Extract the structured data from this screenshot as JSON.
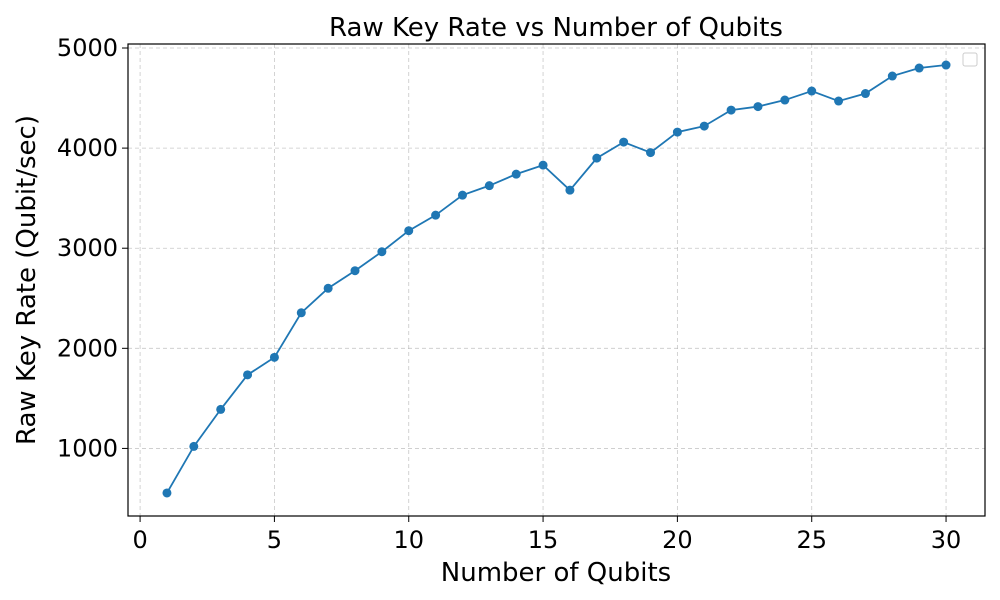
{
  "chart_data": {
    "type": "line",
    "title": "Raw Key Rate vs Number of Qubits",
    "xlabel": "Number of Qubits",
    "ylabel": "Raw Key Rate (Qubit/sec)",
    "xlim": [
      -0.45,
      31.45
    ],
    "ylim": [
      325,
      5040
    ],
    "xticks": [
      0,
      5,
      10,
      15,
      20,
      25,
      30
    ],
    "yticks": [
      1000,
      2000,
      3000,
      4000,
      5000
    ],
    "grid": true,
    "legend": "top-right",
    "series": [
      {
        "name": "",
        "color": "#1f77b4",
        "marker": "circle",
        "x": [
          1,
          2,
          3,
          4,
          5,
          6,
          7,
          8,
          9,
          10,
          11,
          12,
          13,
          14,
          15,
          16,
          17,
          18,
          19,
          20,
          21,
          22,
          23,
          24,
          25,
          26,
          27,
          28,
          29,
          30
        ],
        "y": [
          555,
          1020,
          1390,
          1735,
          1910,
          2355,
          2600,
          2775,
          2965,
          3175,
          3330,
          3530,
          3625,
          3740,
          3830,
          3580,
          3900,
          4060,
          3955,
          4160,
          4220,
          4380,
          4415,
          4480,
          4570,
          4470,
          4545,
          4720,
          4800,
          4830
        ]
      }
    ]
  }
}
